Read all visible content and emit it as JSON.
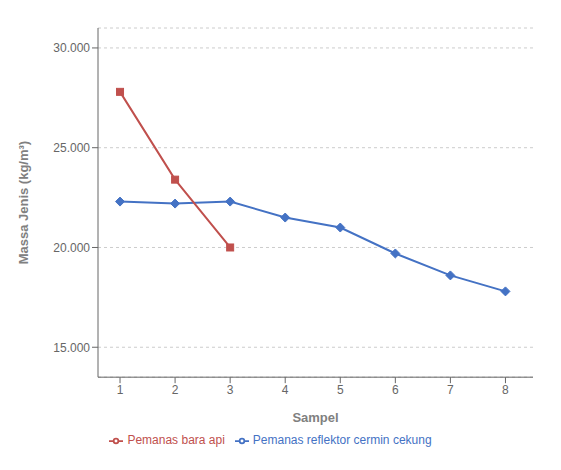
{
  "chart_data": {
    "type": "line",
    "x_label": "Sampel",
    "y_label": "Massa Jenis (kg/m³)",
    "x": [
      1,
      2,
      3,
      4,
      5,
      6,
      7,
      8
    ],
    "series": [
      {
        "name": "Pemanas reflektor cermin cekung",
        "color": "#4472C4",
        "marker": "diamond",
        "values": [
          22300,
          22200,
          22300,
          21500,
          21000,
          19700,
          18600,
          17800
        ]
      },
      {
        "name": "Pemanas bara api",
        "color": "#C0504D",
        "marker": "square",
        "values": [
          27800,
          23400,
          20000,
          null,
          null,
          null,
          null,
          null
        ]
      }
    ],
    "xlim": [
      0.6,
      8.5
    ],
    "xticks": [
      1,
      2,
      3,
      4,
      5,
      6,
      7,
      8
    ],
    "ylim": [
      13500,
      31000
    ],
    "yticks": [
      {
        "value": 15000,
        "label": "15.000"
      },
      {
        "value": 20000,
        "label": "20.000"
      },
      {
        "value": 25000,
        "label": "25.000"
      },
      {
        "value": 30000,
        "label": "30.000"
      }
    ],
    "grid": "y",
    "legend": "bottom"
  }
}
